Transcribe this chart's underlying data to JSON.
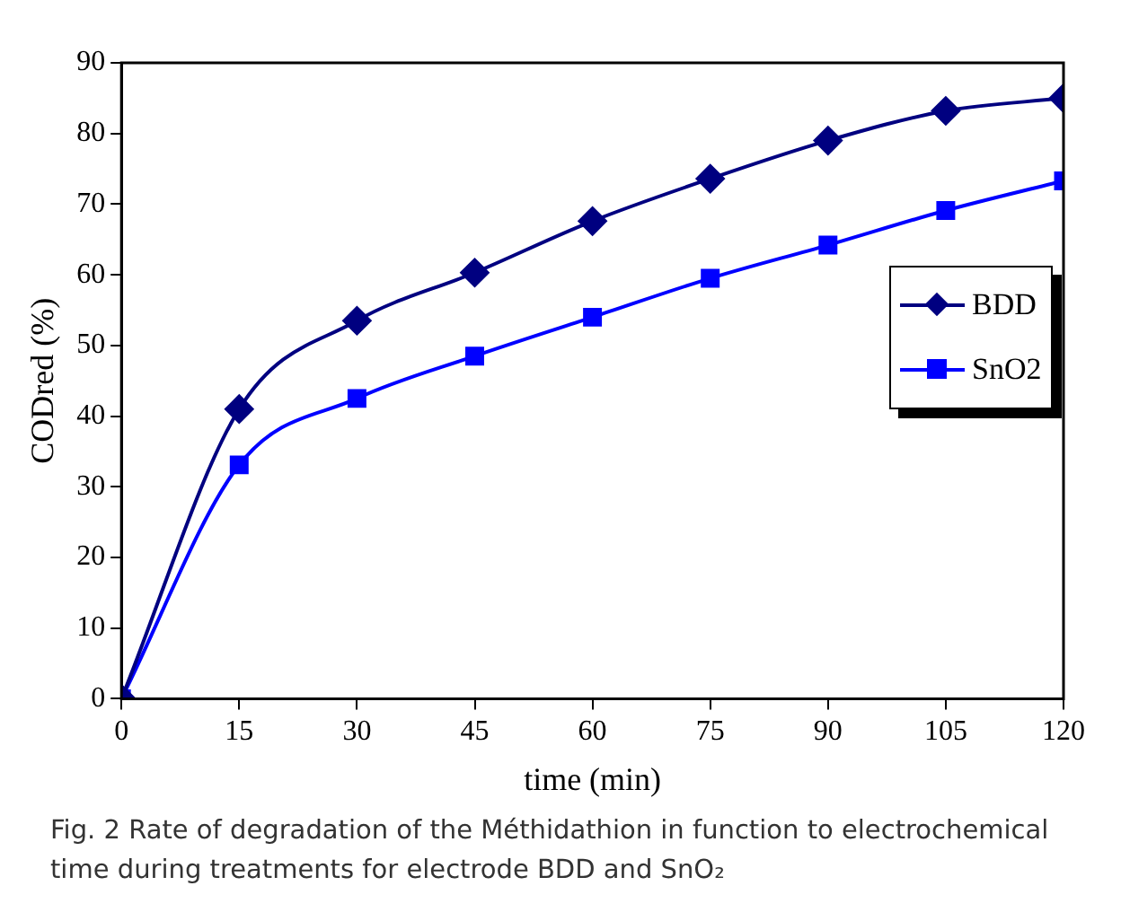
{
  "chart_data": {
    "type": "line",
    "xlabel": "time (min)",
    "ylabel": "CODred (%)",
    "x": [
      0,
      15,
      30,
      45,
      60,
      75,
      90,
      105,
      120
    ],
    "series": [
      {
        "name": "BDD",
        "color": "#000080",
        "marker": "diamond",
        "values": [
          0,
          41,
          53.5,
          60.3,
          67.6,
          73.6,
          79,
          83.2,
          85
        ]
      },
      {
        "name": "SnO2",
        "color": "#0000ff",
        "marker": "square",
        "values": [
          0,
          33.1,
          42.5,
          48.5,
          54,
          59.5,
          64.2,
          69.1,
          73.3
        ]
      }
    ],
    "xlim": [
      0,
      120
    ],
    "xticks": [
      0,
      15,
      30,
      45,
      60,
      75,
      90,
      105,
      120
    ],
    "ylim": [
      0,
      90
    ],
    "yticks": [
      0,
      10,
      20,
      30,
      40,
      50,
      60,
      70,
      80,
      90
    ],
    "grid": false,
    "legend": "right",
    "annotations": [
      "Fig. 2  Rate of degradation of the Méthidathion in function to electrochemical time during treatments for electrode BDD and SnO₂"
    ]
  }
}
